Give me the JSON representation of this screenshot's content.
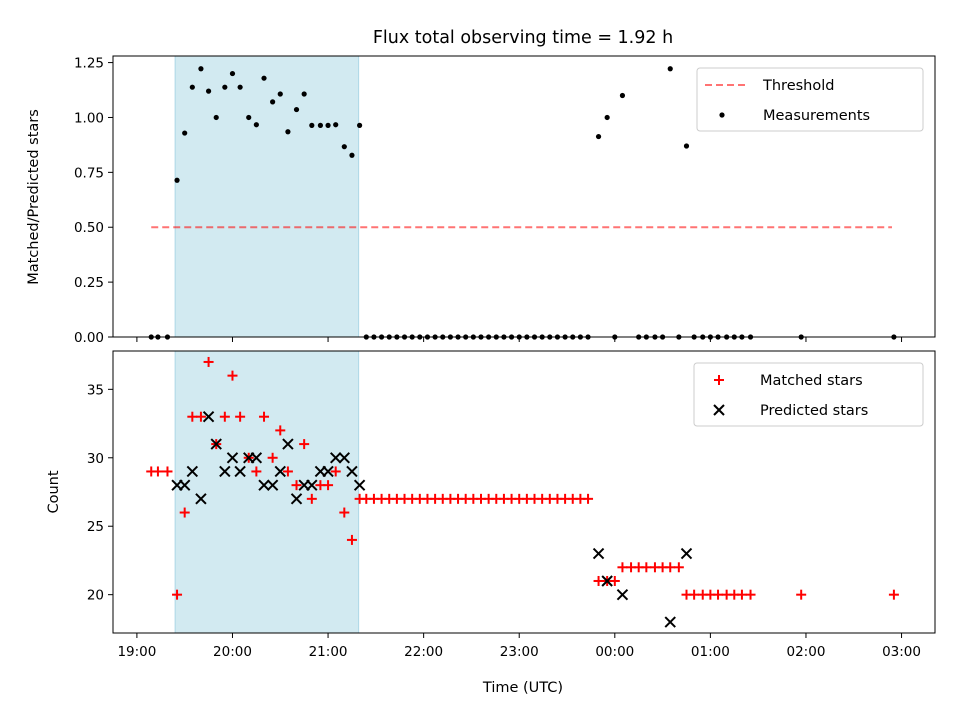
{
  "chart_data": {
    "type": "scatter",
    "title": "Flux total observing time = 1.92 h",
    "xlabel": "Time (UTC)",
    "x_ticks": [
      "19:00",
      "20:00",
      "21:00",
      "22:00",
      "23:00",
      "00:00",
      "01:00",
      "02:00",
      "03:00"
    ],
    "xlim_hours": [
      18.75,
      27.35
    ],
    "shaded_interval_hours": [
      19.4,
      21.32
    ],
    "shade_color": "#add8e6",
    "panels": [
      {
        "ylabel": "Matched/Predicted stars",
        "ylim": [
          0,
          1.28
        ],
        "y_ticks": [
          "0.00",
          "0.25",
          "0.50",
          "0.75",
          "1.00",
          "1.25"
        ],
        "y_tick_values": [
          0,
          0.25,
          0.5,
          0.75,
          1.0,
          1.25
        ],
        "legend": [
          "Threshold",
          "Measurements"
        ],
        "threshold": {
          "name": "Threshold",
          "value": 0.5,
          "x_range": [
            19.15,
            26.9
          ],
          "color": "#ff0000"
        },
        "measurements": {
          "name": "Measurements",
          "color": "#000000",
          "points": [
            [
              19.15,
              0
            ],
            [
              19.22,
              0
            ],
            [
              19.32,
              0
            ],
            [
              19.42,
              0.714
            ],
            [
              19.5,
              0.929
            ],
            [
              19.58,
              1.138
            ],
            [
              19.67,
              1.222
            ],
            [
              19.75,
              1.12
            ],
            [
              19.83,
              1.0
            ],
            [
              19.92,
              1.138
            ],
            [
              20.0,
              1.2
            ],
            [
              20.08,
              1.138
            ],
            [
              20.17,
              1.0
            ],
            [
              20.25,
              0.967
            ],
            [
              20.33,
              1.179
            ],
            [
              20.42,
              1.071
            ],
            [
              20.5,
              1.107
            ],
            [
              20.58,
              0.935
            ],
            [
              20.67,
              1.036
            ],
            [
              20.75,
              1.107
            ],
            [
              20.83,
              0.964
            ],
            [
              20.92,
              0.964
            ],
            [
              21.0,
              0.964
            ],
            [
              21.08,
              0.967
            ],
            [
              21.17,
              0.867
            ],
            [
              21.25,
              0.828
            ],
            [
              21.33,
              0.964
            ],
            [
              21.4,
              0
            ],
            [
              21.48,
              0
            ],
            [
              21.56,
              0
            ],
            [
              21.64,
              0
            ],
            [
              21.72,
              0
            ],
            [
              21.8,
              0
            ],
            [
              21.88,
              0
            ],
            [
              21.96,
              0
            ],
            [
              22.04,
              0
            ],
            [
              22.12,
              0
            ],
            [
              22.2,
              0
            ],
            [
              22.28,
              0
            ],
            [
              22.36,
              0
            ],
            [
              22.44,
              0
            ],
            [
              22.52,
              0
            ],
            [
              22.6,
              0
            ],
            [
              22.68,
              0
            ],
            [
              22.76,
              0
            ],
            [
              22.84,
              0
            ],
            [
              22.92,
              0
            ],
            [
              23.0,
              0
            ],
            [
              23.08,
              0
            ],
            [
              23.16,
              0
            ],
            [
              23.24,
              0
            ],
            [
              23.32,
              0
            ],
            [
              23.4,
              0
            ],
            [
              23.48,
              0
            ],
            [
              23.56,
              0
            ],
            [
              23.64,
              0
            ],
            [
              23.72,
              0
            ],
            [
              23.83,
              0.913
            ],
            [
              23.92,
              1.0
            ],
            [
              24.08,
              1.1
            ],
            [
              24.0,
              0
            ],
            [
              24.25,
              0
            ],
            [
              24.33,
              0
            ],
            [
              24.42,
              0
            ],
            [
              24.5,
              0
            ],
            [
              24.58,
              1.222
            ],
            [
              24.67,
              0
            ],
            [
              24.75,
              0.87
            ],
            [
              24.83,
              0
            ],
            [
              24.92,
              0
            ],
            [
              25.0,
              0
            ],
            [
              25.08,
              0
            ],
            [
              25.17,
              0
            ],
            [
              25.25,
              0
            ],
            [
              25.33,
              0
            ],
            [
              25.42,
              0
            ],
            [
              25.95,
              0
            ],
            [
              26.92,
              0
            ]
          ]
        }
      },
      {
        "ylabel": "Count",
        "ylim": [
          17.2,
          37.8
        ],
        "y_ticks": [
          "20",
          "25",
          "30",
          "35"
        ],
        "y_tick_values": [
          20,
          25,
          30,
          35
        ],
        "legend": [
          "Matched stars",
          "Predicted stars"
        ],
        "series": [
          {
            "name": "Matched stars",
            "marker": "+",
            "color": "#ff0000",
            "points": [
              [
                19.15,
                29
              ],
              [
                19.22,
                29
              ],
              [
                19.32,
                29
              ],
              [
                19.42,
                20
              ],
              [
                19.5,
                26
              ],
              [
                19.58,
                33
              ],
              [
                19.67,
                33
              ],
              [
                19.75,
                37
              ],
              [
                19.83,
                31
              ],
              [
                19.92,
                33
              ],
              [
                20.0,
                36
              ],
              [
                20.08,
                33
              ],
              [
                20.17,
                30
              ],
              [
                20.25,
                29
              ],
              [
                20.33,
                33
              ],
              [
                20.42,
                30
              ],
              [
                20.5,
                32
              ],
              [
                20.58,
                29
              ],
              [
                20.67,
                28
              ],
              [
                20.75,
                31
              ],
              [
                20.83,
                27
              ],
              [
                20.92,
                28
              ],
              [
                21.0,
                28
              ],
              [
                21.08,
                29
              ],
              [
                21.17,
                26
              ],
              [
                21.25,
                24
              ],
              [
                21.33,
                27
              ],
              [
                21.4,
                27
              ],
              [
                21.48,
                27
              ],
              [
                21.56,
                27
              ],
              [
                21.64,
                27
              ],
              [
                21.72,
                27
              ],
              [
                21.8,
                27
              ],
              [
                21.88,
                27
              ],
              [
                21.96,
                27
              ],
              [
                22.04,
                27
              ],
              [
                22.12,
                27
              ],
              [
                22.2,
                27
              ],
              [
                22.28,
                27
              ],
              [
                22.36,
                27
              ],
              [
                22.44,
                27
              ],
              [
                22.52,
                27
              ],
              [
                22.6,
                27
              ],
              [
                22.68,
                27
              ],
              [
                22.76,
                27
              ],
              [
                22.84,
                27
              ],
              [
                22.92,
                27
              ],
              [
                23.0,
                27
              ],
              [
                23.08,
                27
              ],
              [
                23.16,
                27
              ],
              [
                23.24,
                27
              ],
              [
                23.32,
                27
              ],
              [
                23.4,
                27
              ],
              [
                23.48,
                27
              ],
              [
                23.56,
                27
              ],
              [
                23.64,
                27
              ],
              [
                23.72,
                27
              ],
              [
                23.83,
                21
              ],
              [
                23.92,
                21
              ],
              [
                24.0,
                21
              ],
              [
                24.08,
                22
              ],
              [
                24.17,
                22
              ],
              [
                24.25,
                22
              ],
              [
                24.33,
                22
              ],
              [
                24.42,
                22
              ],
              [
                24.5,
                22
              ],
              [
                24.58,
                22
              ],
              [
                24.67,
                22
              ],
              [
                24.75,
                20
              ],
              [
                24.83,
                20
              ],
              [
                24.92,
                20
              ],
              [
                25.0,
                20
              ],
              [
                25.08,
                20
              ],
              [
                25.17,
                20
              ],
              [
                25.25,
                20
              ],
              [
                25.33,
                20
              ],
              [
                25.42,
                20
              ],
              [
                25.95,
                20
              ],
              [
                26.92,
                20
              ]
            ]
          },
          {
            "name": "Predicted stars",
            "marker": "x",
            "color": "#000000",
            "points": [
              [
                19.42,
                28
              ],
              [
                19.5,
                28
              ],
              [
                19.58,
                29
              ],
              [
                19.67,
                27
              ],
              [
                19.75,
                33
              ],
              [
                19.83,
                31
              ],
              [
                19.92,
                29
              ],
              [
                20.0,
                30
              ],
              [
                20.08,
                29
              ],
              [
                20.17,
                30
              ],
              [
                20.25,
                30
              ],
              [
                20.33,
                28
              ],
              [
                20.42,
                28
              ],
              [
                20.5,
                29
              ],
              [
                20.58,
                31
              ],
              [
                20.67,
                27
              ],
              [
                20.75,
                28
              ],
              [
                20.83,
                28
              ],
              [
                20.92,
                29
              ],
              [
                21.0,
                29
              ],
              [
                21.08,
                30
              ],
              [
                21.17,
                30
              ],
              [
                21.25,
                29
              ],
              [
                21.33,
                28
              ],
              [
                23.83,
                23
              ],
              [
                23.92,
                21
              ],
              [
                24.08,
                20
              ],
              [
                24.58,
                18
              ],
              [
                24.75,
                23
              ]
            ]
          }
        ]
      }
    ]
  }
}
